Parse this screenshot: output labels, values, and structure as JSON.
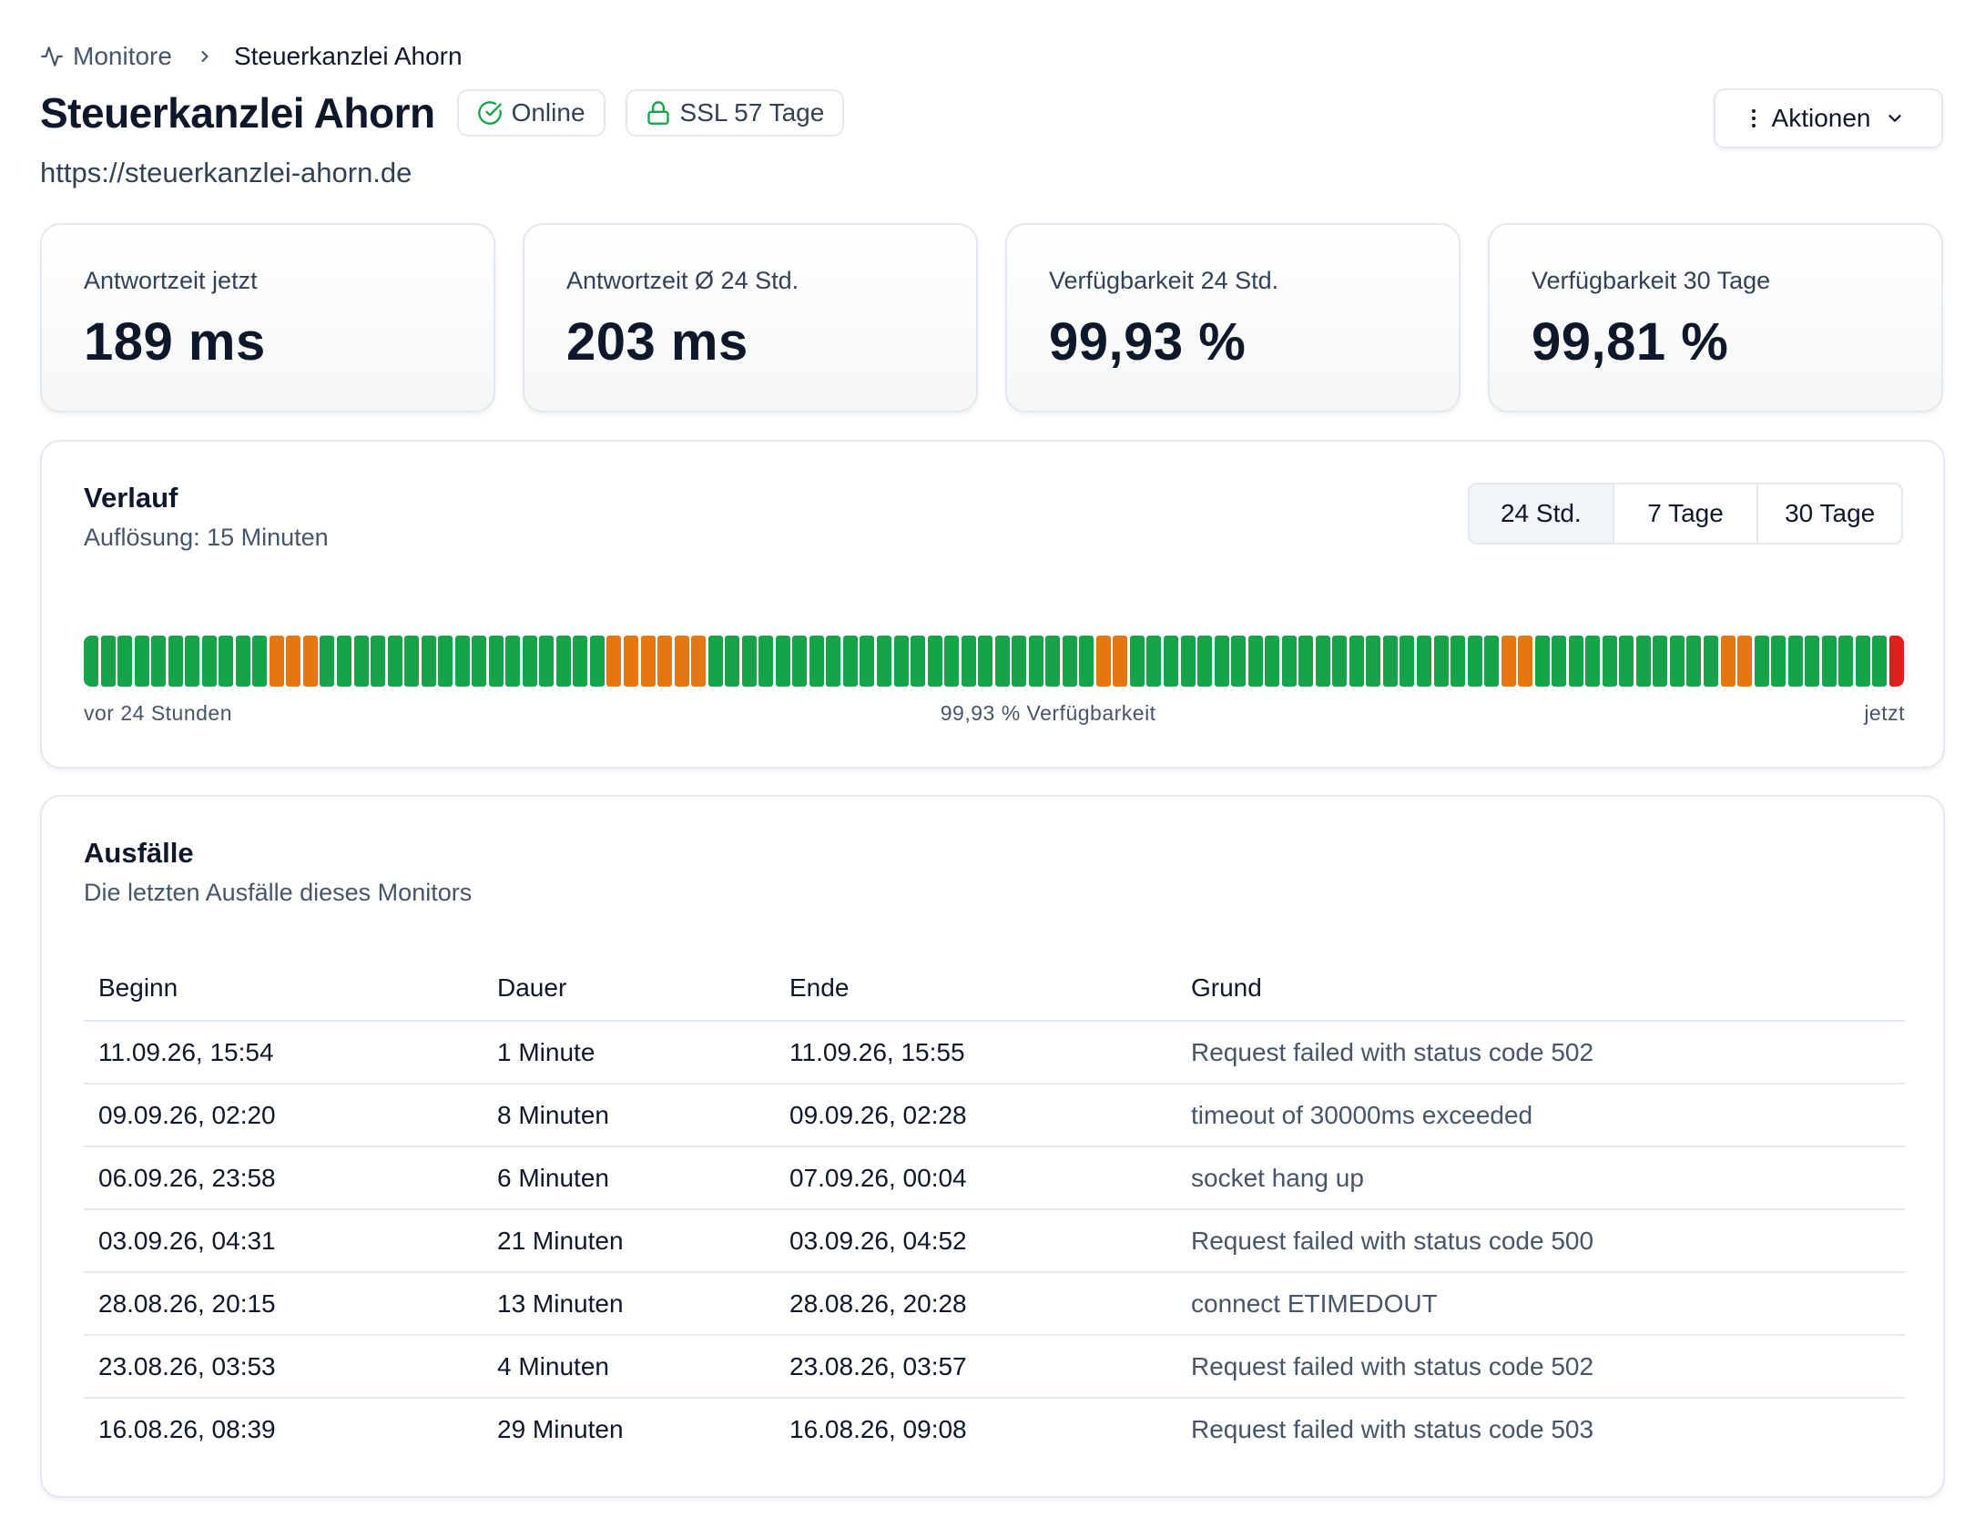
{
  "breadcrumb": {
    "parent": "Monitore",
    "current": "Steuerkanzlei Ahorn"
  },
  "header": {
    "title": "Steuerkanzlei Ahorn",
    "status_badge": "Online",
    "ssl_badge": "SSL 57 Tage",
    "url": "https://steuerkanzlei-ahorn.de",
    "actions_label": "Aktionen"
  },
  "stats": [
    {
      "label": "Antwortzeit jetzt",
      "value": "189 ms"
    },
    {
      "label": "Antwortzeit Ø 24 Std.",
      "value": "203 ms"
    },
    {
      "label": "Verfügbarkeit 24 Std.",
      "value": "99,93 %"
    },
    {
      "label": "Verfügbarkeit 30 Tage",
      "value": "99,81 %"
    }
  ],
  "history": {
    "title": "Verlauf",
    "subtitle": "Auflösung: 15 Minuten",
    "ranges": [
      "24 Std.",
      "7 Tage",
      "30 Tage"
    ],
    "active_range": "24 Std.",
    "label_start": "vor 24 Stunden",
    "label_center": "99,93 % Verfügbarkeit",
    "label_end": "jetzt",
    "colors": {
      "up": "#16a34a",
      "degraded": "#e57713",
      "down": "#e11d1d"
    },
    "status_sequence": "uuuuuuuuuuuddduuuuuuuuuuuuuuuuudddddduuuuuuuuuuuuuuuuuuuuuuudduuuuuuuuuuuuuuuuuuuuuudduuuuuuuuuuudduuuuuuuuX"
  },
  "outages": {
    "title": "Ausfälle",
    "subtitle": "Die letzten Ausfälle dieses Monitors",
    "columns": [
      "Beginn",
      "Dauer",
      "Ende",
      "Grund"
    ],
    "rows": [
      {
        "begin": "11.09.26, 15:54",
        "duration": "1 Minute",
        "end": "11.09.26, 15:55",
        "reason": "Request failed with status code 502"
      },
      {
        "begin": "09.09.26, 02:20",
        "duration": "8 Minuten",
        "end": "09.09.26, 02:28",
        "reason": "timeout of 30000ms exceeded"
      },
      {
        "begin": "06.09.26, 23:58",
        "duration": "6 Minuten",
        "end": "07.09.26, 00:04",
        "reason": "socket hang up"
      },
      {
        "begin": "03.09.26, 04:31",
        "duration": "21 Minuten",
        "end": "03.09.26, 04:52",
        "reason": "Request failed with status code 500"
      },
      {
        "begin": "28.08.26, 20:15",
        "duration": "13 Minuten",
        "end": "28.08.26, 20:28",
        "reason": "connect ETIMEDOUT"
      },
      {
        "begin": "23.08.26, 03:53",
        "duration": "4 Minuten",
        "end": "23.08.26, 03:57",
        "reason": "Request failed with status code 502"
      },
      {
        "begin": "16.08.26, 08:39",
        "duration": "29 Minuten",
        "end": "16.08.26, 09:08",
        "reason": "Request failed with status code 503"
      }
    ]
  }
}
